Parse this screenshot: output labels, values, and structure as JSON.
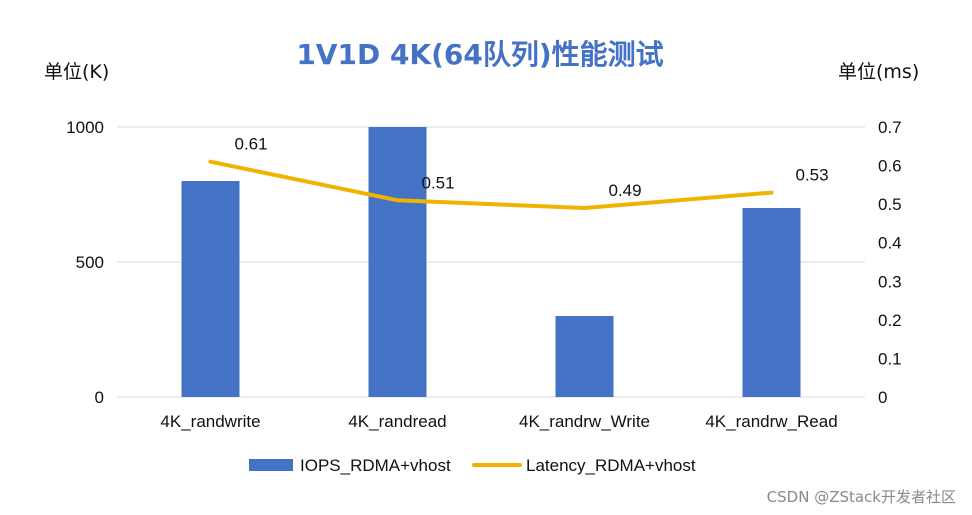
{
  "chart_data": {
    "type": "bar",
    "title": "1V1D 4K(64队列)性能测试",
    "ylabel": "单位(K)",
    "y2label": "单位(ms)",
    "categories": [
      "4K_randwrite",
      "4K_randread",
      "4K_randrw_Write",
      "4K_randrw_Read"
    ],
    "series": [
      {
        "name": "IOPS_RDMA+vhost",
        "type": "bar",
        "axis": "left",
        "values": [
          800,
          1000,
          300,
          700
        ],
        "color": "#4472C4"
      },
      {
        "name": "Latency_RDMA+vhost",
        "type": "line",
        "axis": "right",
        "values": [
          0.61,
          0.51,
          0.49,
          0.53
        ],
        "labels": [
          "0.61",
          "0.51",
          "0.49",
          "0.53"
        ],
        "color": "#F0B400"
      }
    ],
    "ylim": [
      0,
      1000
    ],
    "yticks": [
      "0",
      "500",
      "1000"
    ],
    "y2lim": [
      0,
      0.7
    ],
    "y2ticks": [
      "0",
      "0.1",
      "0.2",
      "0.3",
      "0.4",
      "0.5",
      "0.6",
      "0.7"
    ],
    "grid": true,
    "legend_position": "bottom"
  },
  "watermark": "CSDN @ZStack开发者社区",
  "colors": {
    "title": "#4472C4",
    "grid": "#d9d9d9"
  }
}
